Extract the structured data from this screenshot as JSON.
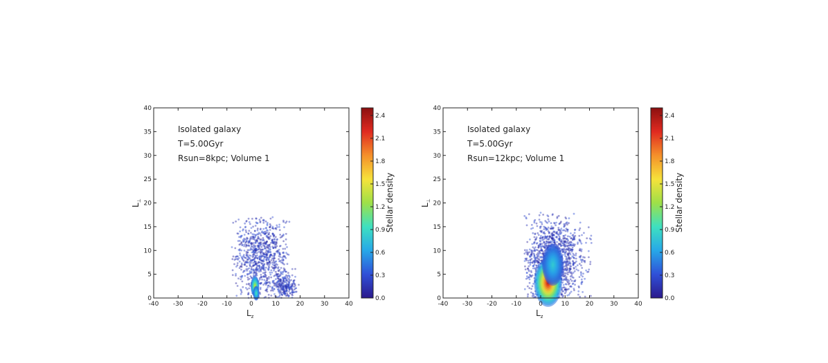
{
  "chart_data": [
    {
      "type": "heatmap",
      "annotations": [
        "Isolated galaxy",
        "T=5.00Gyr",
        "Rsun=8kpc; Volume 1"
      ],
      "xlabel": "L",
      "xlabel_sub": "z",
      "ylabel": "L",
      "ylabel_sub": "⊥",
      "xlim": [
        -40,
        40
      ],
      "ylim": [
        0,
        40
      ],
      "xticks": [
        -40,
        -30,
        -20,
        -10,
        0,
        10,
        20,
        30,
        40
      ],
      "yticks": [
        0,
        5,
        10,
        15,
        20,
        25,
        30,
        35,
        40
      ],
      "colorbar": {
        "label": "Stellar density",
        "range": [
          0.0,
          2.5
        ],
        "ticks": [
          "0.0",
          "0.3",
          "0.6",
          "0.9",
          "1.2",
          "1.5",
          "1.8",
          "2.1",
          "2.4"
        ],
        "colormap": [
          "#2b1a8c",
          "#3050d8",
          "#27a8e8",
          "#3ee0c0",
          "#9ee048",
          "#f6e23a",
          "#f5902a",
          "#e02a20",
          "#8c1010"
        ]
      },
      "clusters": [
        {
          "x": 4,
          "y": 9,
          "sx": 5.5,
          "sy": 4.2,
          "n": 900,
          "xmin": -8,
          "xmax": 16,
          "ymax": 17
        },
        {
          "x": 14,
          "y": 2.5,
          "sx": 2.5,
          "sy": 1.4,
          "n": 250,
          "xmin": -8,
          "xmax": 20,
          "ymax": 17
        }
      ],
      "peaks": [
        {
          "x": 1.5,
          "y": 2.5,
          "sx": 0.8,
          "sy": 1.0,
          "peak": 1.3
        },
        {
          "x": 2.0,
          "y": 1.0,
          "sx": 0.6,
          "sy": 0.7,
          "peak": 0.8
        }
      ]
    },
    {
      "type": "heatmap",
      "annotations": [
        "Isolated galaxy",
        "T=5.00Gyr",
        "Rsun=12kpc; Volume 1"
      ],
      "xlabel": "L",
      "xlabel_sub": "z",
      "ylabel": "L",
      "ylabel_sub": "⊥",
      "xlim": [
        -40,
        40
      ],
      "ylim": [
        0,
        40
      ],
      "xticks": [
        -40,
        -30,
        -20,
        -10,
        0,
        10,
        20,
        30,
        40
      ],
      "yticks": [
        0,
        5,
        10,
        15,
        20,
        25,
        30,
        35,
        40
      ],
      "colorbar": {
        "label": "Stellar density",
        "range": [
          0.0,
          2.5
        ],
        "ticks": [
          "0.0",
          "0.3",
          "0.6",
          "0.9",
          "1.2",
          "1.5",
          "1.8",
          "2.1",
          "2.4"
        ],
        "colormap": [
          "#2b1a8c",
          "#3050d8",
          "#27a8e8",
          "#3ee0c0",
          "#9ee048",
          "#f6e23a",
          "#f5902a",
          "#e02a20",
          "#8c1010"
        ]
      },
      "clusters": [
        {
          "x": 5,
          "y": 8,
          "sx": 6,
          "sy": 4.5,
          "n": 1400,
          "xmin": -7,
          "xmax": 21,
          "ymax": 18
        }
      ],
      "peaks": [
        {
          "x": 3.0,
          "y": 3.2,
          "sx": 2.6,
          "sy": 2.3,
          "peak": 2.4
        },
        {
          "x": 5.0,
          "y": 7.0,
          "sx": 2.0,
          "sy": 2.0,
          "peak": 0.6
        }
      ]
    }
  ]
}
